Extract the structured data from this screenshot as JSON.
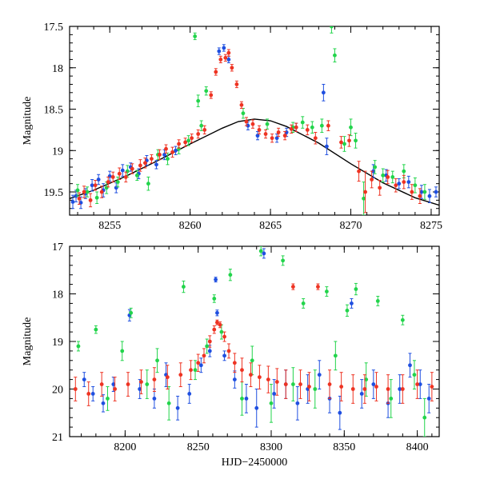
{
  "chart_data": [
    {
      "type": "scatter",
      "title": "",
      "xlabel": "",
      "ylabel": "Magnitude",
      "xlim": [
        8252.5,
        8275.5
      ],
      "ylim": [
        19.78,
        17.5
      ],
      "y_inverted": true,
      "xticks": [
        "8255",
        "8260",
        "8265",
        "8270",
        "8275"
      ],
      "yticks": [
        "17.5",
        "18",
        "18.5",
        "19",
        "19.5"
      ],
      "grid": false,
      "legend": "none",
      "series": [
        {
          "color": "#1f4fe0",
          "x": [
            8252.7,
            8252.9,
            8253.2,
            8253.5,
            8253.9,
            8254.3,
            8254.6,
            8255.0,
            8255.4,
            8255.8,
            8256.3,
            8256.8,
            8257.3,
            8257.9,
            8258.4,
            8259.1,
            8261.8,
            8262.1,
            8262.4,
            8263.6,
            8264.2,
            8265.4,
            8266.0,
            8266.6,
            8268.3,
            8268.5,
            8271.4,
            8272.2,
            8273.0,
            8273.6,
            8274.4,
            8274.9,
            8275.3
          ],
          "y": [
            19.62,
            19.55,
            19.63,
            19.52,
            19.42,
            19.35,
            19.48,
            19.31,
            19.45,
            19.24,
            19.2,
            19.28,
            19.12,
            19.17,
            19.05,
            19.0,
            17.8,
            17.76,
            17.9,
            18.7,
            18.82,
            18.85,
            18.78,
            18.72,
            18.3,
            18.95,
            19.25,
            19.3,
            19.4,
            19.38,
            19.5,
            19.55,
            19.5
          ],
          "err": [
            0.08,
            0.07,
            0.07,
            0.06,
            0.07,
            0.06,
            0.08,
            0.06,
            0.06,
            0.07,
            0.05,
            0.06,
            0.06,
            0.05,
            0.06,
            0.05,
            0.04,
            0.04,
            0.04,
            0.05,
            0.05,
            0.05,
            0.05,
            0.05,
            0.1,
            0.1,
            0.08,
            0.07,
            0.06,
            0.07,
            0.08,
            0.08,
            0.06
          ]
        },
        {
          "color": "#22d44b",
          "x": [
            8253.0,
            8253.6,
            8254.2,
            8254.8,
            8255.5,
            8256.1,
            8256.7,
            8257.4,
            8258.0,
            8258.6,
            8259.3,
            8259.9,
            8260.3,
            8260.5,
            8260.7,
            8261.0,
            8263.3,
            8264.8,
            8266.4,
            8267.0,
            8267.6,
            8268.2,
            8268.8,
            8269.0,
            8269.6,
            8270.0,
            8270.3,
            8270.8,
            8271.5,
            8272.0,
            8272.6,
            8273.3,
            8274.0,
            8274.6
          ],
          "y": [
            19.48,
            19.5,
            19.57,
            19.45,
            19.38,
            19.25,
            19.3,
            19.4,
            19.05,
            19.1,
            18.98,
            18.88,
            17.62,
            18.4,
            18.7,
            18.28,
            18.55,
            18.68,
            18.72,
            18.66,
            18.72,
            18.7,
            17.5,
            17.85,
            18.92,
            18.72,
            18.88,
            19.58,
            19.2,
            19.3,
            19.32,
            19.25,
            19.42,
            19.5
          ],
          "err": [
            0.07,
            0.06,
            0.07,
            0.07,
            0.06,
            0.07,
            0.06,
            0.08,
            0.06,
            0.07,
            0.06,
            0.06,
            0.04,
            0.07,
            0.06,
            0.05,
            0.06,
            0.06,
            0.06,
            0.07,
            0.07,
            0.08,
            0.08,
            0.08,
            0.09,
            0.1,
            0.09,
            0.2,
            0.08,
            0.08,
            0.07,
            0.08,
            0.09,
            0.09
          ]
        },
        {
          "color": "#ee3322",
          "x": [
            8253.1,
            8253.4,
            8253.8,
            8254.1,
            8254.5,
            8254.9,
            8255.2,
            8255.6,
            8256.0,
            8256.4,
            8256.9,
            8257.2,
            8257.6,
            8258.1,
            8258.5,
            8258.9,
            8259.3,
            8259.7,
            8260.1,
            8260.5,
            8260.9,
            8261.3,
            8261.6,
            8261.9,
            8262.2,
            8262.4,
            8262.6,
            8262.9,
            8263.2,
            8263.5,
            8263.9,
            8264.3,
            8264.7,
            8265.1,
            8265.5,
            8265.9,
            8266.3,
            8266.6,
            8267.3,
            8267.8,
            8268.6,
            8269.4,
            8269.9,
            8270.5,
            8270.9,
            8271.3,
            8271.8,
            8272.3,
            8272.8,
            8273.3,
            8273.8,
            8274.3
          ],
          "y": [
            19.58,
            19.5,
            19.6,
            19.42,
            19.5,
            19.38,
            19.32,
            19.28,
            19.32,
            19.22,
            19.18,
            19.15,
            19.1,
            19.05,
            18.98,
            19.02,
            18.92,
            18.9,
            18.85,
            18.8,
            18.75,
            18.33,
            18.05,
            17.9,
            17.88,
            17.82,
            18.0,
            18.2,
            18.45,
            18.65,
            18.68,
            18.75,
            18.8,
            18.85,
            18.78,
            18.82,
            18.74,
            18.72,
            18.75,
            18.85,
            18.7,
            18.9,
            18.88,
            19.25,
            19.5,
            19.35,
            19.45,
            19.32,
            19.42,
            19.38,
            19.5,
            19.55
          ],
          "err": [
            0.07,
            0.07,
            0.08,
            0.06,
            0.07,
            0.06,
            0.06,
            0.07,
            0.06,
            0.06,
            0.07,
            0.06,
            0.05,
            0.06,
            0.05,
            0.06,
            0.05,
            0.05,
            0.05,
            0.05,
            0.05,
            0.04,
            0.04,
            0.04,
            0.04,
            0.04,
            0.04,
            0.04,
            0.04,
            0.05,
            0.05,
            0.05,
            0.05,
            0.05,
            0.05,
            0.05,
            0.05,
            0.05,
            0.06,
            0.07,
            0.06,
            0.07,
            0.07,
            0.12,
            0.25,
            0.1,
            0.09,
            0.08,
            0.08,
            0.08,
            0.09,
            0.09
          ]
        }
      ],
      "fit_curve": {
        "color": "#000000",
        "x": [
          8252.5,
          8254,
          8256,
          8258,
          8260,
          8262,
          8263,
          8264,
          8265,
          8266,
          8268,
          8270,
          8272,
          8274,
          8275.5
        ],
        "y": [
          19.58,
          19.48,
          19.31,
          19.12,
          18.92,
          18.73,
          18.65,
          18.62,
          18.64,
          18.71,
          18.91,
          19.16,
          19.39,
          19.57,
          19.66
        ]
      }
    },
    {
      "type": "scatter",
      "title": "",
      "xlabel": "HJD−2450000",
      "ylabel": "Magnitude",
      "xlim": [
        8162,
        8415
      ],
      "ylim": [
        21,
        17
      ],
      "y_inverted": true,
      "xticks": [
        "8200",
        "8250",
        "8300",
        "8350",
        "8400"
      ],
      "yticks": [
        "17",
        "18",
        "19",
        "20",
        "21"
      ],
      "grid": false,
      "legend": "none",
      "series": [
        {
          "color": "#1f4fe0",
          "x": [
            8172,
            8178,
            8185,
            8192,
            8203,
            8210,
            8220,
            8228,
            8236,
            8244,
            8252,
            8258,
            8262,
            8263,
            8268,
            8275,
            8283,
            8290,
            8295,
            8302,
            8310,
            8318,
            8325,
            8333,
            8340,
            8347,
            8355,
            8362,
            8370,
            8380,
            8388,
            8395,
            8402,
            8408
          ],
          "y": [
            19.8,
            20.1,
            20.3,
            19.9,
            18.45,
            20.0,
            20.2,
            19.7,
            20.4,
            20.1,
            19.5,
            19.2,
            17.7,
            18.4,
            19.3,
            19.8,
            20.2,
            20.4,
            17.15,
            20.1,
            19.9,
            20.3,
            20.0,
            19.7,
            20.2,
            20.5,
            18.2,
            20.1,
            19.9,
            20.3,
            20.0,
            19.5,
            19.9,
            20.2
          ],
          "err": [
            0.15,
            0.15,
            0.18,
            0.15,
            0.12,
            0.2,
            0.2,
            0.25,
            0.25,
            0.2,
            0.15,
            0.12,
            0.05,
            0.06,
            0.1,
            0.18,
            0.3,
            0.4,
            0.1,
            0.3,
            0.3,
            0.35,
            0.3,
            0.3,
            0.3,
            0.35,
            0.1,
            0.3,
            0.3,
            0.3,
            0.3,
            0.25,
            0.3,
            0.3
          ]
        },
        {
          "color": "#22d44b",
          "x": [
            8168,
            8180,
            8188,
            8198,
            8204,
            8215,
            8222,
            8230,
            8240,
            8248,
            8256,
            8261,
            8266,
            8272,
            8280,
            8287,
            8293,
            8300,
            8308,
            8315,
            8322,
            8330,
            8338,
            8344,
            8352,
            8358,
            8365,
            8373,
            8382,
            8390,
            8398,
            8405
          ],
          "y": [
            19.1,
            18.75,
            20.2,
            19.2,
            18.4,
            19.9,
            19.4,
            20.3,
            17.85,
            19.6,
            19.1,
            18.1,
            18.8,
            17.6,
            20.2,
            19.4,
            17.1,
            20.3,
            17.3,
            19.9,
            18.2,
            20.0,
            17.95,
            19.3,
            18.35,
            17.9,
            19.8,
            18.15,
            20.2,
            18.55,
            19.7,
            20.6
          ],
          "err": [
            0.1,
            0.08,
            0.25,
            0.2,
            0.1,
            0.3,
            0.25,
            0.35,
            0.12,
            0.2,
            0.15,
            0.08,
            0.15,
            0.12,
            0.35,
            0.3,
            0.1,
            0.4,
            0.1,
            0.35,
            0.1,
            0.4,
            0.1,
            0.3,
            0.12,
            0.12,
            0.35,
            0.1,
            0.4,
            0.1,
            0.3,
            0.4
          ]
        },
        {
          "color": "#ee3322",
          "x": [
            8166,
            8175,
            8184,
            8193,
            8202,
            8211,
            8220,
            8229,
            8238,
            8245,
            8250,
            8254,
            8258,
            8261,
            8263,
            8265,
            8268,
            8271,
            8275,
            8280,
            8286,
            8292,
            8298,
            8304,
            8310,
            8315,
            8320,
            8326,
            8332,
            8340,
            8348,
            8356,
            8364,
            8372,
            8380,
            8390,
            8400,
            8410
          ],
          "y": [
            20.0,
            20.1,
            19.9,
            20.0,
            19.9,
            19.85,
            19.8,
            19.75,
            19.7,
            19.6,
            19.45,
            19.3,
            19.0,
            18.75,
            18.6,
            18.65,
            18.9,
            19.2,
            19.45,
            19.6,
            19.7,
            19.75,
            19.8,
            19.85,
            19.9,
            17.85,
            19.9,
            19.95,
            17.85,
            19.9,
            19.95,
            20.0,
            20.0,
            19.95,
            20.0,
            20.0,
            19.9,
            19.95
          ],
          "err": [
            0.25,
            0.25,
            0.25,
            0.25,
            0.25,
            0.25,
            0.25,
            0.25,
            0.25,
            0.2,
            0.18,
            0.15,
            0.12,
            0.08,
            0.05,
            0.06,
            0.1,
            0.15,
            0.2,
            0.25,
            0.25,
            0.25,
            0.28,
            0.28,
            0.3,
            0.06,
            0.3,
            0.3,
            0.06,
            0.3,
            0.3,
            0.3,
            0.3,
            0.3,
            0.3,
            0.3,
            0.3,
            0.3
          ]
        }
      ]
    }
  ]
}
